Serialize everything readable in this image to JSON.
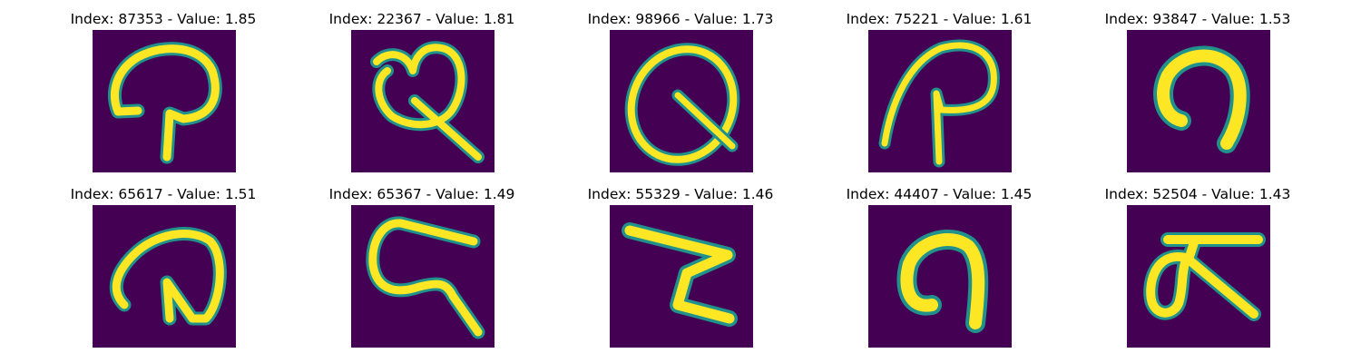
{
  "colors": {
    "background": "#ffffff",
    "image_background": "#440154",
    "stroke_outer": "#21918c",
    "stroke_mid": "#5ec962",
    "stroke_core": "#fde725"
  },
  "colormap": "viridis",
  "grid": {
    "rows": 2,
    "cols": 5
  },
  "panels": [
    {
      "title": "Index: 87353 - Value: 1.85"
    },
    {
      "title": "Index: 22367 - Value: 1.81"
    },
    {
      "title": "Index: 98966 - Value: 1.73"
    },
    {
      "title": "Index: 75221 - Value: 1.61"
    },
    {
      "title": "Index: 93847 - Value: 1.53"
    },
    {
      "title": "Index: 65617 - Value: 1.51"
    },
    {
      "title": "Index: 65367 - Value: 1.49"
    },
    {
      "title": "Index: 55329 - Value: 1.46"
    },
    {
      "title": "Index: 44407 - Value: 1.45"
    },
    {
      "title": "Index: 52504 - Value: 1.43"
    }
  ]
}
